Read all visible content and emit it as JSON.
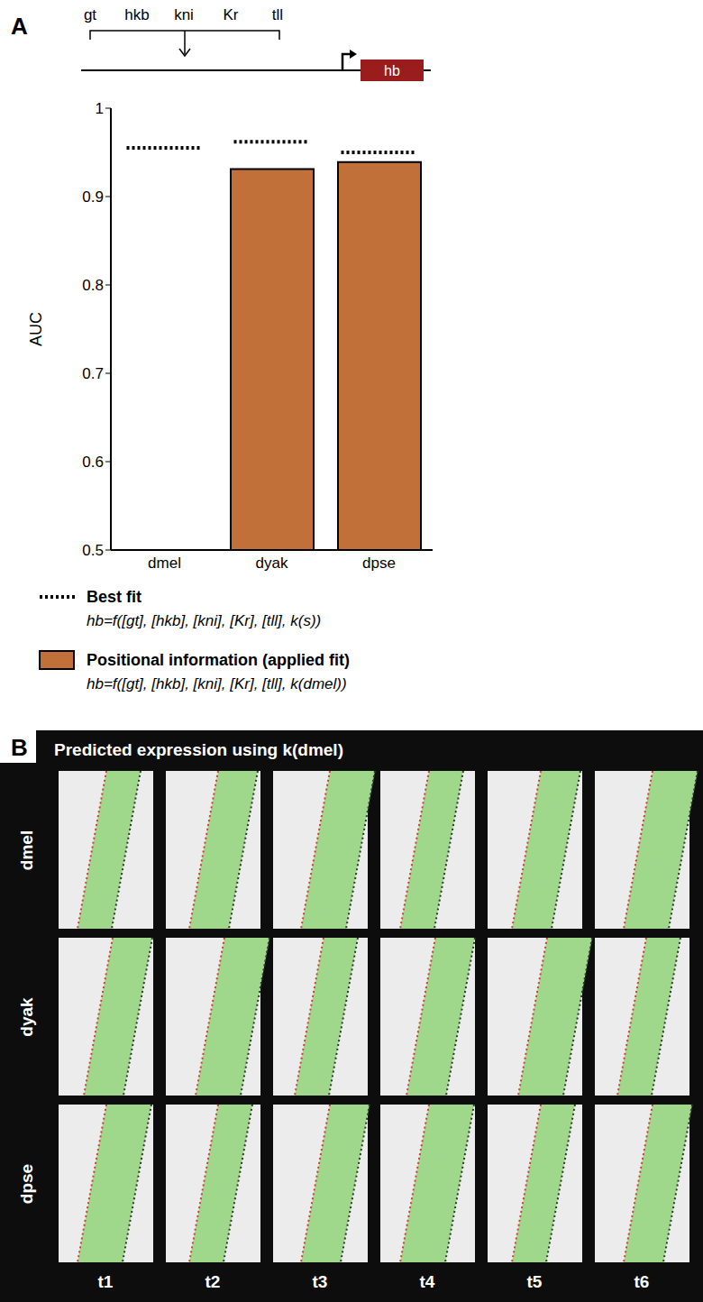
{
  "panel_labels": [
    "A",
    "B"
  ],
  "gene_diagram": {
    "regulators": [
      "gt",
      "hkb",
      "kni",
      "Kr",
      "tll"
    ],
    "gene": "hb"
  },
  "chart_data": {
    "type": "bar",
    "ylabel": "AUC",
    "categories": [
      "dmel",
      "dyak",
      "dpse"
    ],
    "series": [
      {
        "name": "Best fit",
        "formula": "hb=f([gt], [hkb], [kni], [Kr], [tll], k(s))",
        "type": "line",
        "line_style": "dotted",
        "color": "#000000",
        "values": [
          0.955,
          0.962,
          0.95
        ]
      },
      {
        "name": "Positional information (applied fit)",
        "formula": "hb=f([gt], [hkb], [kni], [Kr], [tll], k(dmel))",
        "type": "bar",
        "color": "#c2703a",
        "values": [
          null,
          0.931,
          0.939
        ]
      }
    ],
    "ylim": [
      0.5,
      1
    ],
    "yticks": [
      0.5,
      0.6,
      0.7,
      0.8,
      0.9,
      1
    ],
    "grid": false
  },
  "panel_b": {
    "title": "Predicted expression using k(dmel)",
    "rows": [
      "dmel",
      "dyak",
      "dpse"
    ],
    "columns": [
      "t1",
      "t2",
      "t3",
      "t4",
      "t5",
      "t6"
    ]
  }
}
